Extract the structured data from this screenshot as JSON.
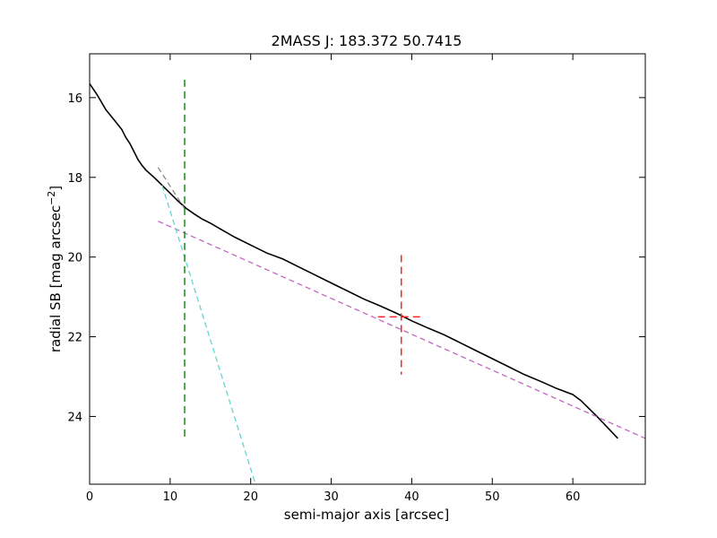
{
  "chart_data": {
    "type": "line",
    "title": "2MASS J: 183.372 50.7415",
    "xlabel": "semi-major axis [arcsec]",
    "ylabel_main": "radial SB [mag arcsec",
    "ylabel_sup": "−2",
    "ylabel_close": "]",
    "xlim": [
      0,
      69
    ],
    "ylim": [
      25.7,
      14.9
    ],
    "y_inverted": true,
    "grid": false,
    "x_ticks": [
      0,
      10,
      20,
      30,
      40,
      50,
      60
    ],
    "y_ticks": [
      16,
      18,
      20,
      22,
      24
    ],
    "series": [
      {
        "style": "solid",
        "color": "#000000",
        "x": [
          0,
          1,
          2,
          3,
          4,
          4.5,
          5,
          5.5,
          6,
          6.5,
          7,
          8,
          9,
          10,
          11,
          12,
          13,
          14,
          15,
          16,
          18,
          20,
          22,
          24,
          26,
          28,
          30,
          32,
          34,
          36,
          38,
          40,
          42,
          44,
          46,
          48,
          50,
          52,
          54,
          56,
          58,
          60,
          61,
          63,
          65.6
        ],
        "y": [
          15.65,
          15.95,
          16.3,
          16.55,
          16.8,
          17.0,
          17.15,
          17.35,
          17.55,
          17.7,
          17.82,
          18.0,
          18.2,
          18.4,
          18.6,
          18.78,
          18.92,
          19.05,
          19.15,
          19.27,
          19.5,
          19.7,
          19.9,
          20.05,
          20.25,
          20.45,
          20.65,
          20.85,
          21.05,
          21.22,
          21.4,
          21.6,
          21.78,
          21.95,
          22.15,
          22.35,
          22.55,
          22.75,
          22.95,
          23.12,
          23.3,
          23.45,
          23.6,
          24.0,
          24.55
        ]
      },
      {
        "style": "dashed",
        "color": "#c266c2",
        "x": [
          8.5,
          69
        ],
        "y": [
          19.1,
          24.55
        ]
      },
      {
        "style": "dashed",
        "color": "#5fd6d0",
        "x": [
          9,
          20.6
        ],
        "y": [
          18.2,
          25.7
        ]
      },
      {
        "style": "dashed",
        "color": "#888888",
        "x": [
          8.5,
          12
        ],
        "y": [
          17.75,
          18.85
        ]
      }
    ],
    "markers": [
      {
        "type": "vline",
        "style": "dashed",
        "color": "#1a8a1a",
        "x": 11.8,
        "y": [
          15.55,
          24.6
        ]
      },
      {
        "type": "vline",
        "style": "dashed",
        "color": "#ff2020",
        "x": 38.7,
        "y": [
          19.95,
          22.95
        ]
      },
      {
        "type": "hline",
        "style": "dashed",
        "color": "#ff2020",
        "y": 21.5,
        "x": [
          35.8,
          41.6
        ]
      }
    ]
  }
}
